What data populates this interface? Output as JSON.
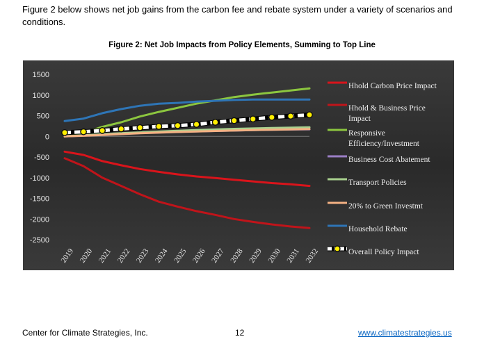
{
  "document": {
    "intro": "Figure 2 below shows net job gains from the carbon fee and rebate system under a variety of scenarios and conditions.",
    "figure_title": "Figure 2: Net Job Impacts from Policy Elements, Summing to Top Line"
  },
  "footer": {
    "org": "Center for Climate Strategies, Inc.",
    "page_number": "12",
    "link": "www.climatestrategies.us"
  },
  "chart_data": {
    "type": "line",
    "title": "Figure 2: Net Job Impacts from Policy Elements, Summing to Top Line",
    "xlabel": "",
    "ylabel": "",
    "ylim": [
      -2500,
      1500
    ],
    "yticks": [
      "1500",
      "1000",
      "500",
      "0",
      "-500",
      "-1000",
      "-1500",
      "-2000",
      "-2500"
    ],
    "ytick_values": [
      1500,
      1000,
      500,
      0,
      -500,
      -1000,
      -1500,
      -2000,
      -2500
    ],
    "x": [
      "2019",
      "2020",
      "2021",
      "2022",
      "2023",
      "2024",
      "2025",
      "2026",
      "2027",
      "2028",
      "2029",
      "2030",
      "2031",
      "2032"
    ],
    "background": "#2b2b2b",
    "grid": false,
    "legend_position": "right",
    "series": [
      {
        "name": "Hhold Carbon Price Impact",
        "color": "#d9141b",
        "style": "line",
        "values": [
          -370,
          -450,
          -600,
          -700,
          -790,
          -860,
          -920,
          -970,
          -1010,
          -1050,
          -1090,
          -1130,
          -1160,
          -1200
        ]
      },
      {
        "name": "Hhold & Business Price Impact",
        "color": "#c0141a",
        "style": "line",
        "values": [
          -530,
          -720,
          -1000,
          -1200,
          -1400,
          -1580,
          -1700,
          -1810,
          -1900,
          -2000,
          -2070,
          -2130,
          -2180,
          -2220
        ]
      },
      {
        "name": "Responsive Efficiency/Investment",
        "color": "#8cc63f",
        "style": "line",
        "values": [
          0,
          80,
          230,
          340,
          480,
          590,
          690,
          790,
          870,
          950,
          1010,
          1060,
          1110,
          1160
        ]
      },
      {
        "name": "Business Cost Abatement",
        "color": "#9b7fc6",
        "style": "line",
        "values": [
          0,
          20,
          40,
          60,
          80,
          95,
          110,
          120,
          130,
          140,
          150,
          160,
          165,
          170
        ]
      },
      {
        "name": "Transport Policies",
        "color": "#a9d18e",
        "style": "line",
        "values": [
          0,
          25,
          50,
          75,
          95,
          115,
          135,
          150,
          165,
          180,
          190,
          200,
          210,
          220
        ]
      },
      {
        "name": "20% to Green Investmt",
        "color": "#f4b183",
        "style": "line",
        "values": [
          0,
          15,
          35,
          55,
          75,
          90,
          105,
          118,
          130,
          140,
          150,
          160,
          168,
          175
        ]
      },
      {
        "name": "Household Rebate",
        "color": "#2e75b6",
        "style": "line",
        "values": [
          370,
          430,
          560,
          660,
          740,
          790,
          810,
          840,
          860,
          880,
          890,
          890,
          890,
          890
        ]
      },
      {
        "name": "Overall Policy Impact",
        "color": "#ffffff",
        "style": "dotted",
        "values": [
          90,
          110,
          140,
          180,
          210,
          240,
          260,
          290,
          340,
          380,
          420,
          460,
          490,
          520
        ]
      }
    ]
  }
}
